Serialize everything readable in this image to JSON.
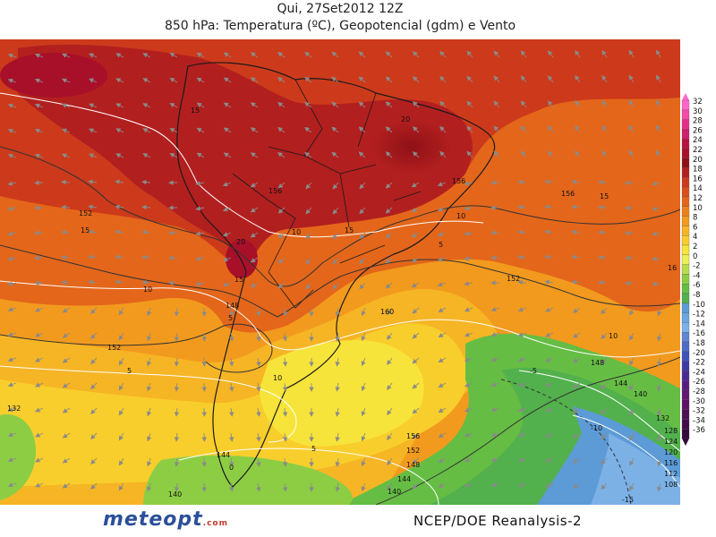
{
  "title_line1": "Qui, 27Set2012 12Z",
  "title_line2": "850 hPa: Temperatura (ºC), Geopotencial (gdm) e Vento",
  "footer_logo": "meteopt",
  "footer_logo_suffix": ".com",
  "footer_source": "NCEP/DOE  Reanalysis-2",
  "color_scale": {
    "levels": [
      "32",
      "30",
      "28",
      "26",
      "24",
      "22",
      "20",
      "18",
      "16",
      "14",
      "12",
      "10",
      "8",
      "6",
      "4",
      "2",
      "0",
      "-2",
      "-4",
      "-6",
      "-8",
      "-10",
      "-12",
      "-14",
      "-16",
      "-18",
      "-20",
      "-22",
      "-24",
      "-26",
      "-28",
      "-30",
      "-32",
      "-34",
      "-36"
    ],
    "colors": [
      "#ff66cc",
      "#f44aa8",
      "#e5308a",
      "#cf1f6e",
      "#b8133f",
      "#a8102a",
      "#8f1118",
      "#b21f1f",
      "#cc3a1b",
      "#db4f1a",
      "#e4661a",
      "#ec801b",
      "#f29a1e",
      "#f6b524",
      "#f8ce2c",
      "#f7e43a",
      "#e9ef55",
      "#b9dd4a",
      "#8ccd44",
      "#66bd44",
      "#52b14c",
      "#5c9bd6",
      "#6aa6e0",
      "#7cb1e6",
      "#5f86d4",
      "#4d6bc8",
      "#3f52b8",
      "#3c3aa5",
      "#4a2a92",
      "#5a1e82",
      "#631872",
      "#5c1464",
      "#4f1056",
      "#420c48",
      "#33083a"
    ]
  },
  "contour_labels_temperature": [
    "15",
    "15",
    "15",
    "15",
    "15",
    "20",
    "20",
    "10",
    "10",
    "10",
    "10",
    "10",
    "5",
    "5",
    "5",
    "5",
    "0",
    "-5",
    "-10",
    "-15",
    "16"
  ],
  "contour_labels_geopotential": [
    "152",
    "156",
    "156",
    "156",
    "152",
    "148",
    "160",
    "152",
    "148",
    "144",
    "140",
    "132",
    "128",
    "124",
    "120",
    "116",
    "112",
    "108",
    "156",
    "152",
    "148",
    "144",
    "140",
    "144",
    "140",
    "132"
  ]
}
